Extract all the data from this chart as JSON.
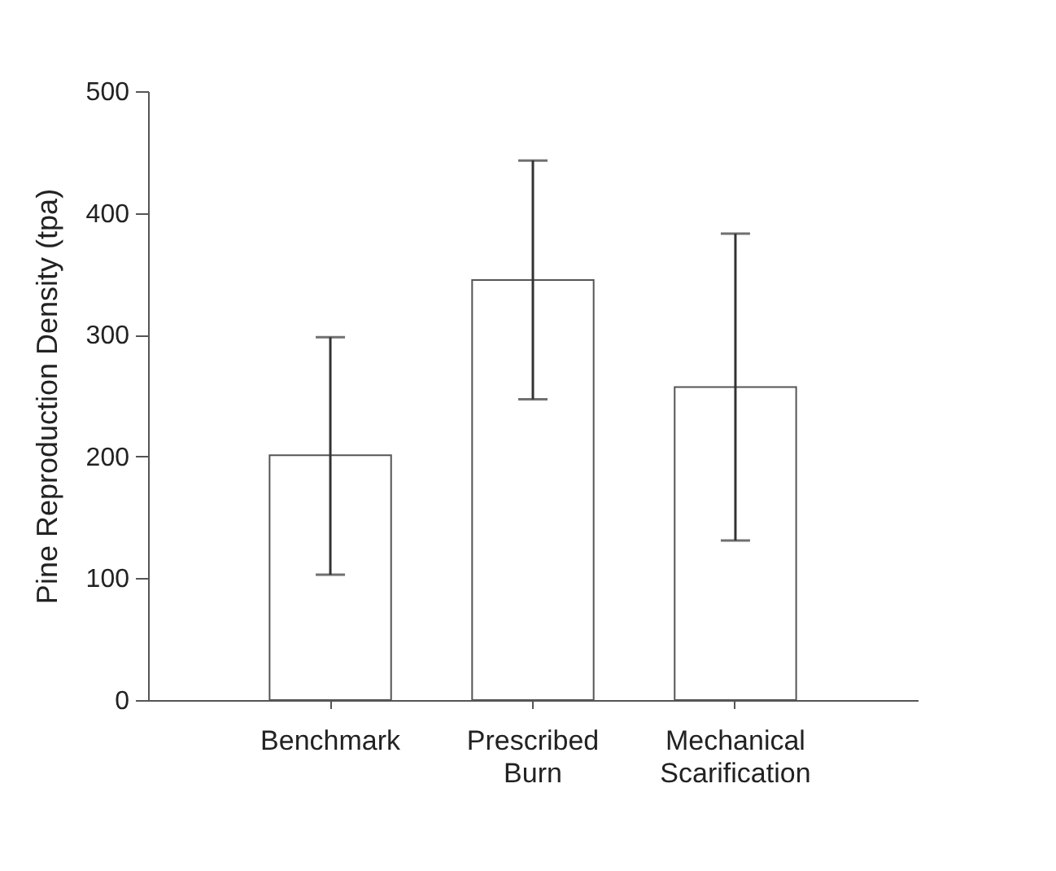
{
  "chart_data": {
    "type": "bar",
    "ylabel": "Pine Reproduction Density (tpa)",
    "categories": [
      "Benchmark",
      "Prescribed Burn",
      "Mechanical Scarification"
    ],
    "values": [
      201,
      345,
      257
    ],
    "errors": [
      [
        103,
        298
      ],
      [
        247,
        443
      ],
      [
        131,
        383
      ]
    ],
    "color": "#ffffff",
    "ylim": [
      0,
      500
    ],
    "yticks": [
      0,
      100,
      200,
      300,
      400,
      500
    ],
    "grid": false
  }
}
